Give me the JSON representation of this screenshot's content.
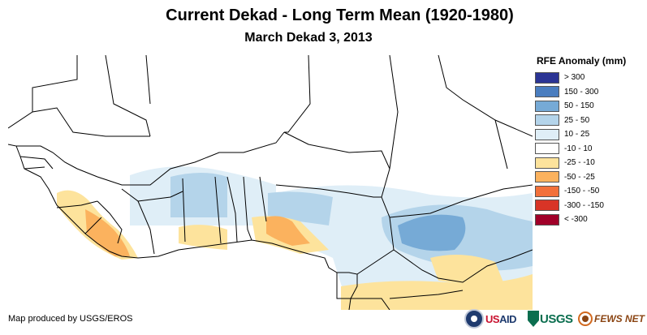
{
  "title": "Current Dekad - Long Term Mean (1920-1980)",
  "subtitle": "March Dekad 3, 2013",
  "legend": {
    "title": "RFE Anomaly (mm)",
    "items": [
      {
        "label": "> 300",
        "color": "#2b3494"
      },
      {
        "label": "150 - 300",
        "color": "#4a7dbf"
      },
      {
        "label": "50 - 150",
        "color": "#76aad6"
      },
      {
        "label": "25 - 50",
        "color": "#b4d4ea"
      },
      {
        "label": "10 - 25",
        "color": "#dfeef7"
      },
      {
        "label": "-10 - 10",
        "color": "#ffffff"
      },
      {
        "label": "-25 - -10",
        "color": "#fde39c"
      },
      {
        "label": "-50 - -25",
        "color": "#fbb25e"
      },
      {
        "label": "-150 - -50",
        "color": "#f2703a"
      },
      {
        "label": "-300 - -150",
        "color": "#d83426"
      },
      {
        "label": "< -300",
        "color": "#a00029"
      }
    ]
  },
  "credit": "Map produced by USGS/EROS",
  "logos": {
    "usaid": {
      "name": "USAID",
      "text_us": "US",
      "text_aid": "AID"
    },
    "usgs": {
      "name": "USGS",
      "text": "USGS"
    },
    "fews": {
      "name": "FEWS NET",
      "text": "FEWS NET"
    }
  },
  "map": {
    "border_color": "#000000",
    "region": "West Africa"
  }
}
